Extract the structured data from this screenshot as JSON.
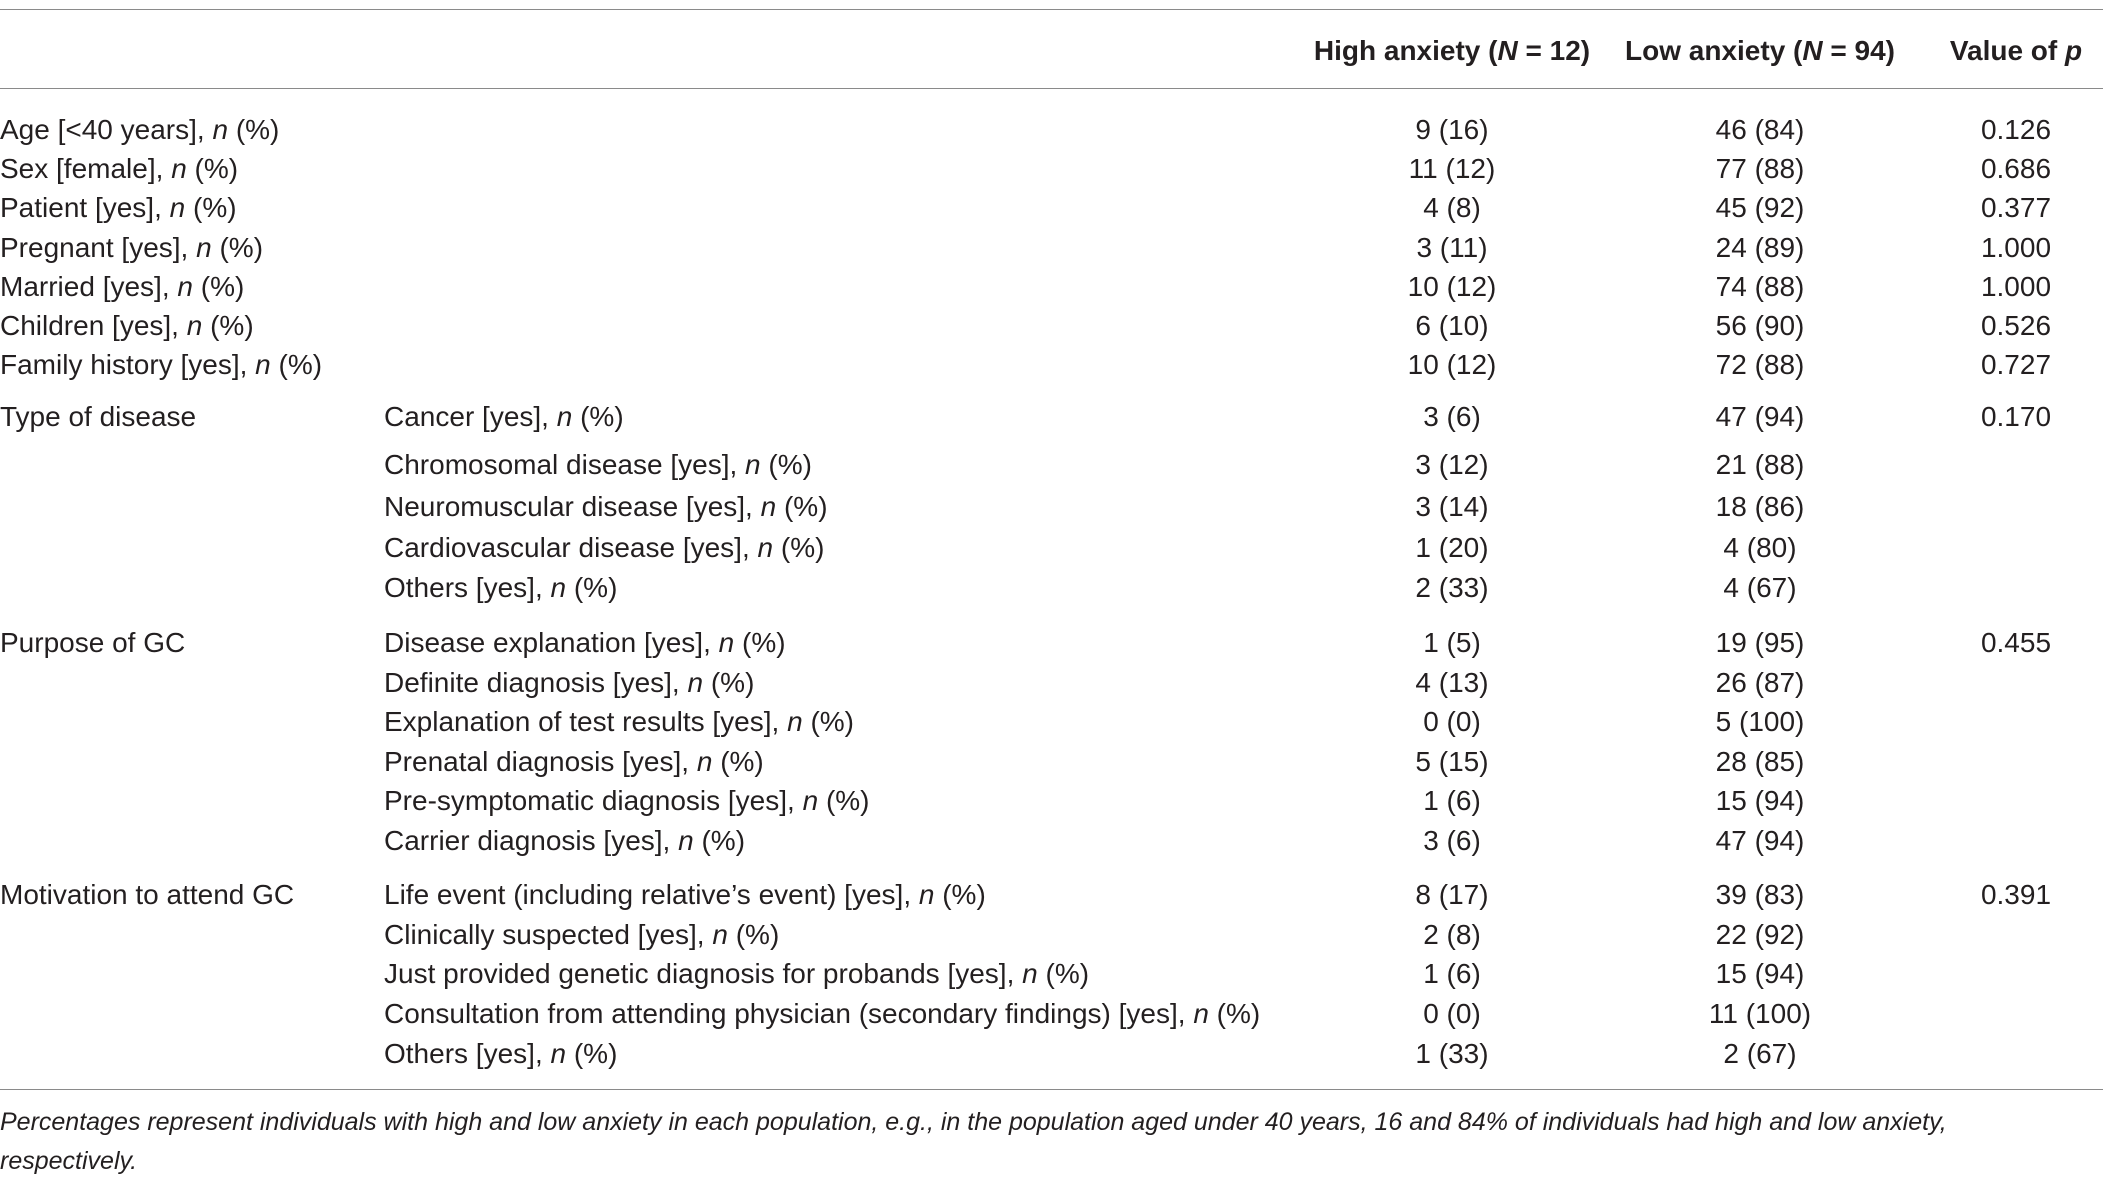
{
  "header": {
    "high_anxiety": "High anxiety (N = 12)",
    "low_anxiety": "Low anxiety (N = 94)",
    "p_value": "Value of p"
  },
  "rows": [
    {
      "group": "Age [<40 years], n (%)",
      "item": "",
      "high": "9 (16)",
      "low": "46 (84)",
      "p": "0.126"
    },
    {
      "group": "Sex [female], n (%)",
      "item": "",
      "high": "11 (12)",
      "low": "77 (88)",
      "p": "0.686"
    },
    {
      "group": "Patient [yes], n (%)",
      "item": "",
      "high": "4 (8)",
      "low": "45 (92)",
      "p": "0.377"
    },
    {
      "group": "Pregnant [yes], n (%)",
      "item": "",
      "high": "3 (11)",
      "low": "24 (89)",
      "p": "1.000"
    },
    {
      "group": "Married [yes], n (%)",
      "item": "",
      "high": "10 (12)",
      "low": "74 (88)",
      "p": "1.000"
    },
    {
      "group": "Children [yes], n (%)",
      "item": "",
      "high": "6 (10)",
      "low": "56 (90)",
      "p": "0.526"
    },
    {
      "group": "Family history [yes], n (%)",
      "item": "",
      "high": "10 (12)",
      "low": "72 (88)",
      "p": "0.727"
    },
    {
      "group": "Type of disease",
      "item": "Cancer [yes], n (%)",
      "high": "3 (6)",
      "low": "47 (94)",
      "p": "0.170"
    },
    {
      "group": "",
      "item": "Chromosomal disease [yes], n (%)",
      "high": "3 (12)",
      "low": "21 (88)",
      "p": ""
    },
    {
      "group": "",
      "item": "Neuromuscular disease [yes], n (%)",
      "high": "3 (14)",
      "low": "18 (86)",
      "p": ""
    },
    {
      "group": "",
      "item": "Cardiovascular disease [yes], n (%)",
      "high": "1 (20)",
      "low": "4 (80)",
      "p": ""
    },
    {
      "group": "",
      "item": "Others [yes], n (%)",
      "high": "2 (33)",
      "low": "4 (67)",
      "p": ""
    },
    {
      "group": "Purpose of GC",
      "item": "Disease explanation [yes], n (%)",
      "high": "1 (5)",
      "low": "19 (95)",
      "p": "0.455"
    },
    {
      "group": "",
      "item": "Definite diagnosis [yes], n (%)",
      "high": "4 (13)",
      "low": "26 (87)",
      "p": ""
    },
    {
      "group": "",
      "item": "Explanation of test results [yes], n (%)",
      "high": "0 (0)",
      "low": "5 (100)",
      "p": ""
    },
    {
      "group": "",
      "item": "Prenatal diagnosis [yes], n (%)",
      "high": "5 (15)",
      "low": "28 (85)",
      "p": ""
    },
    {
      "group": "",
      "item": "Pre-symptomatic diagnosis [yes], n (%)",
      "high": "1 (6)",
      "low": "15 (94)",
      "p": ""
    },
    {
      "group": "",
      "item": "Carrier diagnosis [yes], n (%)",
      "high": "3 (6)",
      "low": "47 (94)",
      "p": ""
    },
    {
      "group": "Motivation to attend GC",
      "item": "Life event (including relative’s event) [yes], n (%)",
      "high": "8 (17)",
      "low": "39 (83)",
      "p": "0.391"
    },
    {
      "group": "",
      "item": "Clinically suspected [yes], n (%)",
      "high": "2 (8)",
      "low": "22 (92)",
      "p": ""
    },
    {
      "group": "",
      "item": "Just provided genetic diagnosis for probands [yes], n (%)",
      "high": "1 (6)",
      "low": "15 (94)",
      "p": ""
    },
    {
      "group": "",
      "item": "Consultation from attending physician (secondary findings) [yes], n (%)",
      "high": "0 (0)",
      "low": "11 (100)",
      "p": ""
    },
    {
      "group": "",
      "item": "Others [yes], n (%)",
      "high": "1 (33)",
      "low": "2 (67)",
      "p": ""
    }
  ],
  "footnote": "Percentages represent individuals with high and low anxiety in each population, e.g., in the population aged under 40 years, 16 and 84% of individuals had high and low anxiety, respectively."
}
